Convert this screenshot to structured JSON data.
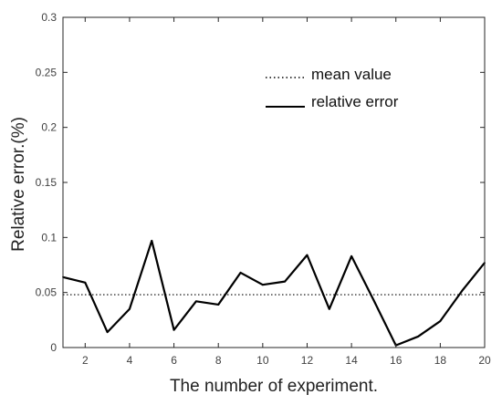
{
  "chart_data": {
    "type": "line",
    "xlabel": "The number of experiment.",
    "ylabel": "Relative error.(%)",
    "xlim": [
      1,
      20
    ],
    "ylim": [
      0,
      0.3
    ],
    "x_ticks": [
      2,
      4,
      6,
      8,
      10,
      12,
      14,
      16,
      18,
      20
    ],
    "x_tick_labels": [
      "2",
      "4",
      "6",
      "8",
      "10",
      "12",
      "14",
      "16",
      "18",
      "20"
    ],
    "y_ticks": [
      0,
      0.05,
      0.1,
      0.15,
      0.2,
      0.25,
      0.3
    ],
    "y_tick_labels": [
      "0",
      "0.05",
      "0.1",
      "0.15",
      "0.2",
      "0.25",
      "0.3"
    ],
    "grid": false,
    "legend_position": "top-right",
    "series": [
      {
        "name": "relative error",
        "style": "solid",
        "color": "#000000",
        "x": [
          1,
          2,
          3,
          4,
          5,
          6,
          7,
          8,
          9,
          10,
          11,
          12,
          13,
          14,
          15,
          16,
          17,
          18,
          19,
          20
        ],
        "y": [
          0.064,
          0.059,
          0.014,
          0.035,
          0.097,
          0.016,
          0.042,
          0.039,
          0.068,
          0.057,
          0.06,
          0.084,
          0.035,
          0.083,
          0.043,
          0.002,
          0.01,
          0.024,
          0.052,
          0.077
        ]
      },
      {
        "name": "mean value",
        "style": "dotted",
        "color": "#000000",
        "x": [
          1,
          20
        ],
        "y": [
          0.048,
          0.048
        ]
      }
    ],
    "legend": [
      {
        "label": "mean value",
        "style": "dotted"
      },
      {
        "label": "relative error",
        "style": "solid"
      }
    ]
  }
}
